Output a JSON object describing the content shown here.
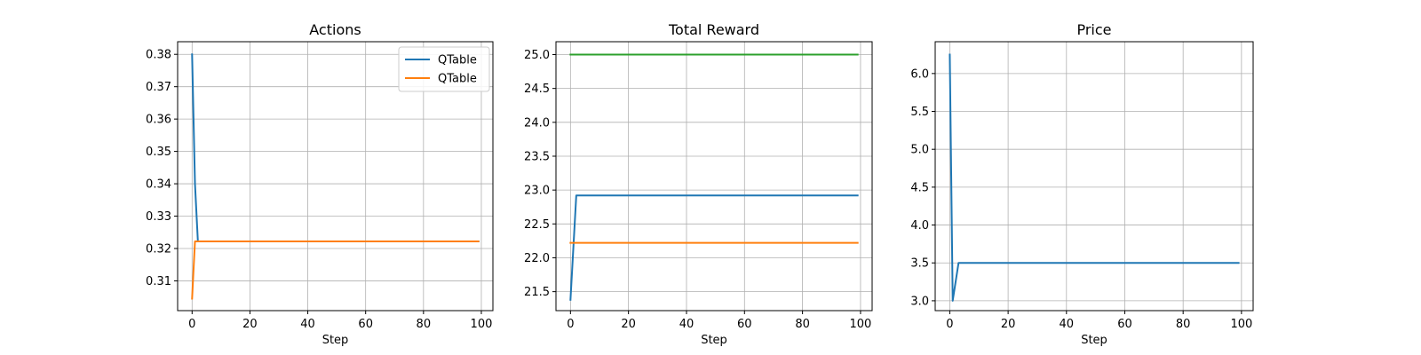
{
  "chart_data": [
    {
      "type": "line",
      "title": "Actions",
      "xlabel": "Step",
      "ylabel": "",
      "xlim": [
        -5,
        104
      ],
      "ylim": [
        0.3008,
        0.3839
      ],
      "xticks": [
        0,
        20,
        40,
        60,
        80,
        100
      ],
      "yticks": [
        0.31,
        0.32,
        0.33,
        0.34,
        0.35,
        0.36,
        0.37,
        0.38
      ],
      "ytick_labels": [
        "0.31",
        "0.32",
        "0.33",
        "0.34",
        "0.35",
        "0.36",
        "0.37",
        "0.38"
      ],
      "grid": true,
      "legend": "top-right",
      "series": [
        {
          "name": "QTable",
          "color": "#1f77b4",
          "points": [
            [
              0,
              0.38
            ],
            [
              1,
              0.34
            ],
            [
              2,
              0.3222
            ],
            [
              99,
              0.3222
            ]
          ]
        },
        {
          "name": "QTable",
          "color": "#ff7f0e",
          "points": [
            [
              0,
              0.3045
            ],
            [
              1,
              0.3222
            ],
            [
              99,
              0.3222
            ]
          ]
        }
      ]
    },
    {
      "type": "line",
      "title": "Total Reward",
      "xlabel": "Step",
      "ylabel": "",
      "xlim": [
        -5,
        104
      ],
      "ylim": [
        21.22,
        25.19
      ],
      "xticks": [
        0,
        20,
        40,
        60,
        80,
        100
      ],
      "yticks": [
        21.5,
        22.0,
        22.5,
        23.0,
        23.5,
        24.0,
        24.5,
        25.0
      ],
      "ytick_labels": [
        "21.5",
        "22.0",
        "22.5",
        "23.0",
        "23.5",
        "24.0",
        "24.5",
        "25.0"
      ],
      "grid": true,
      "legend": "",
      "series": [
        {
          "color": "#1f77b4",
          "points": [
            [
              0,
              21.38
            ],
            [
              2,
              22.92
            ],
            [
              99,
              22.92
            ]
          ]
        },
        {
          "color": "#ff7f0e",
          "points": [
            [
              0,
              22.22
            ],
            [
              99,
              22.22
            ]
          ]
        },
        {
          "color": "#2ca02c",
          "points": [
            [
              0,
              25.0
            ],
            [
              99,
              25.0
            ]
          ]
        }
      ]
    },
    {
      "type": "line",
      "title": "Price",
      "xlabel": "Step",
      "ylabel": "",
      "xlim": [
        -5,
        104
      ],
      "ylim": [
        2.87,
        6.42
      ],
      "xticks": [
        0,
        20,
        40,
        60,
        80,
        100
      ],
      "yticks": [
        3.0,
        3.5,
        4.0,
        4.5,
        5.0,
        5.5,
        6.0
      ],
      "ytick_labels": [
        "3.0",
        "3.5",
        "4.0",
        "4.5",
        "5.0",
        "5.5",
        "6.0"
      ],
      "grid": true,
      "legend": "",
      "series": [
        {
          "color": "#1f77b4",
          "points": [
            [
              0,
              6.25
            ],
            [
              1,
              3.0
            ],
            [
              3,
              3.5
            ],
            [
              99,
              3.5
            ]
          ]
        }
      ]
    }
  ]
}
